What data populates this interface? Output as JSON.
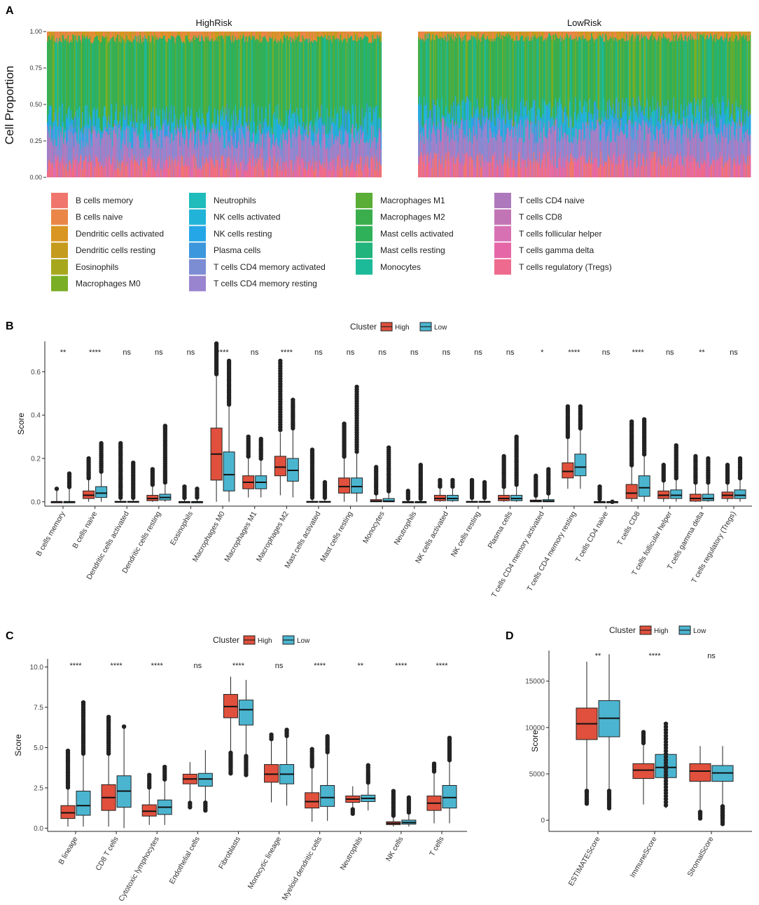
{
  "figure": {
    "panel_labels": [
      "A",
      "B",
      "C",
      "D"
    ],
    "colors": {
      "high": "#e0503c",
      "low": "#4bb5d0"
    },
    "legend_title": "Cluster",
    "legend_labels": [
      "High",
      "Low"
    ]
  },
  "chart_data": [
    {
      "panel": "A",
      "type": "bar",
      "subtype": "stacked-100-percent",
      "ylabel": "Cell Proportion",
      "yticks": [
        "0.00",
        "0.25",
        "0.50",
        "0.75",
        "1.00"
      ],
      "ylim": [
        0,
        1
      ],
      "facets": [
        "HighRisk",
        "LowRisk"
      ],
      "legend": [
        {
          "label": "B cells memory",
          "color": "#f0766d"
        },
        {
          "label": "B cells naive",
          "color": "#e98648"
        },
        {
          "label": "Dendritic cells activated",
          "color": "#d99622"
        },
        {
          "label": "Dendritic cells resting",
          "color": "#c49b1c"
        },
        {
          "label": "Eosinophils",
          "color": "#a6a71d"
        },
        {
          "label": "Macrophages M0",
          "color": "#7aae24"
        },
        {
          "label": "Neutrophils",
          "color": "#1fbcbb"
        },
        {
          "label": "NK cells activated",
          "color": "#22b4d8"
        },
        {
          "label": "NK cells resting",
          "color": "#25a6e6"
        },
        {
          "label": "Plasma cells",
          "color": "#3d97dc"
        },
        {
          "label": "T cells CD4 memory activated",
          "color": "#7d8dd4"
        },
        {
          "label": "T cells CD4 memory resting",
          "color": "#9984cf"
        },
        {
          "label": "Macrophages M1",
          "color": "#5aad36"
        },
        {
          "label": "Macrophages M2",
          "color": "#3aae4c"
        },
        {
          "label": "Mast cells activated",
          "color": "#2fb15a"
        },
        {
          "label": "Mast cells resting",
          "color": "#21b47c"
        },
        {
          "label": "Monocytes",
          "color": "#1dba99"
        },
        {
          "label": "T cells CD4 naive",
          "color": "#ad79bc"
        },
        {
          "label": "T cells CD8",
          "color": "#c275b5"
        },
        {
          "label": "T cells follicular helper",
          "color": "#d870b4"
        },
        {
          "label": "T cells gamma delta",
          "color": "#e667a8"
        },
        {
          "label": "T cells regulatory (Tregs)",
          "color": "#ee6a8e"
        }
      ],
      "approx_mean_boundaries": {
        "HighRisk": {
          "pink_top": 0.1,
          "purple_top": 0.28,
          "blue_top": 0.4,
          "green_top": 0.95
        },
        "LowRisk": {
          "pink_top": 0.12,
          "purple_top": 0.32,
          "blue_top": 0.45,
          "green_top": 0.96
        }
      }
    },
    {
      "panel": "B",
      "type": "box",
      "ylabel": "Score",
      "ylim": [
        -0.02,
        0.74
      ],
      "yticks": [
        "0.0",
        "0.2",
        "0.4",
        "0.6"
      ],
      "legend_title": "Cluster",
      "series": [
        "High",
        "Low"
      ],
      "categories": [
        "B cells memory",
        "B cells naive",
        "Dendritic cells activated",
        "Dendritic cells resting",
        "Eosinophils",
        "Macrophages M0",
        "Macrophages M1",
        "Macrophages M2",
        "Mast cells activated",
        "Mast cells resting",
        "Monocytes",
        "Neutrophils",
        "NK cells activated",
        "NK cells resting",
        "Plasma cells",
        "T cells CD4 memory activated",
        "T cells CD4 memory resting",
        "T cells CD4 naive",
        "T cells CD8",
        "T cells follicular helper",
        "T cells gamma delta",
        "T cells regulatory (Tregs)"
      ],
      "significance": [
        "**",
        "****",
        "ns",
        "ns",
        "ns",
        "****",
        "ns",
        "****",
        "ns",
        "ns",
        "ns",
        "ns",
        "ns",
        "ns",
        "ns",
        "*",
        "****",
        "ns",
        "****",
        "ns",
        "**",
        "ns"
      ],
      "boxes": [
        [
          [
            0,
            0,
            0,
            0,
            0.05,
            [
              0.06
            ]
          ],
          [
            0,
            0,
            0,
            0,
            0.06,
            [
              0.13
            ]
          ]
        ],
        [
          [
            0,
            0.015,
            0.03,
            0.05,
            0.1,
            [
              0.2
            ]
          ],
          [
            0,
            0.02,
            0.04,
            0.07,
            0.13,
            [
              0.27
            ]
          ]
        ],
        [
          [
            0,
            0,
            0,
            0.002,
            0.01,
            [
              0.27
            ]
          ],
          [
            0,
            0,
            0,
            0.002,
            0.01,
            [
              0.18
            ]
          ]
        ],
        [
          [
            0,
            0.005,
            0.015,
            0.03,
            0.07,
            [
              0.15
            ]
          ],
          [
            0,
            0.008,
            0.02,
            0.035,
            0.08,
            [
              0.35
            ]
          ]
        ],
        [
          [
            0,
            0,
            0,
            0,
            0.01,
            [
              0.07
            ]
          ],
          [
            0,
            0,
            0,
            0,
            0.01,
            [
              0.06
            ]
          ]
        ],
        [
          [
            0,
            0.1,
            0.22,
            0.34,
            0.58,
            [
              0.73
            ]
          ],
          [
            0,
            0.05,
            0.125,
            0.23,
            0.44,
            [
              0.65
            ]
          ]
        ],
        [
          [
            0.02,
            0.06,
            0.09,
            0.12,
            0.2,
            [
              0.3
            ]
          ],
          [
            0.02,
            0.06,
            0.09,
            0.12,
            0.19,
            [
              0.29
            ]
          ]
        ],
        [
          [
            0.03,
            0.12,
            0.16,
            0.21,
            0.32,
            [
              0.65
            ]
          ],
          [
            0.02,
            0.095,
            0.145,
            0.2,
            0.33,
            [
              0.47
            ]
          ]
        ],
        [
          [
            0,
            0,
            0,
            0.002,
            0.01,
            [
              0.24
            ]
          ],
          [
            0,
            0,
            0,
            0.002,
            0.01,
            [
              0.09
            ]
          ]
        ],
        [
          [
            0,
            0.04,
            0.07,
            0.11,
            0.2,
            [
              0.36
            ]
          ],
          [
            0,
            0.04,
            0.07,
            0.11,
            0.22,
            [
              0.53
            ]
          ]
        ],
        [
          [
            0,
            0,
            0.003,
            0.01,
            0.03,
            [
              0.16
            ]
          ],
          [
            0,
            0,
            0.003,
            0.015,
            0.04,
            [
              0.25
            ]
          ]
        ],
        [
          [
            0,
            0,
            0,
            0,
            0.005,
            [
              0.05
            ]
          ],
          [
            0,
            0,
            0,
            0,
            0.005,
            [
              0.17
            ]
          ]
        ],
        [
          [
            0,
            0.005,
            0.015,
            0.03,
            0.06,
            [
              0.1
            ]
          ],
          [
            0,
            0.005,
            0.015,
            0.03,
            0.06,
            [
              0.1
            ]
          ]
        ],
        [
          [
            0,
            0,
            0,
            0.002,
            0.01,
            [
              0.1
            ]
          ],
          [
            0,
            0,
            0,
            0.002,
            0.01,
            [
              0.09
            ]
          ]
        ],
        [
          [
            0,
            0.005,
            0.015,
            0.03,
            0.06,
            [
              0.21
            ]
          ],
          [
            0,
            0.005,
            0.015,
            0.03,
            0.07,
            [
              0.3
            ]
          ]
        ],
        [
          [
            0,
            0,
            0.003,
            0.008,
            0.02,
            [
              0.12
            ]
          ],
          [
            0,
            0,
            0.003,
            0.01,
            0.03,
            [
              0.15
            ]
          ]
        ],
        [
          [
            0.06,
            0.11,
            0.14,
            0.18,
            0.29,
            [
              0.44
            ]
          ],
          [
            0.06,
            0.12,
            0.16,
            0.22,
            0.33,
            [
              0.44
            ]
          ]
        ],
        [
          [
            0,
            0,
            0,
            0,
            0.003,
            [
              0.07
            ]
          ],
          [
            0,
            0,
            0,
            0,
            0.003,
            [
              0.0
            ]
          ]
        ],
        [
          [
            0,
            0.015,
            0.04,
            0.08,
            0.16,
            [
              0.37
            ]
          ],
          [
            0,
            0.025,
            0.065,
            0.12,
            0.21,
            [
              0.38
            ]
          ]
        ],
        [
          [
            0,
            0.015,
            0.03,
            0.05,
            0.09,
            [
              0.17
            ]
          ],
          [
            0,
            0.015,
            0.03,
            0.055,
            0.1,
            [
              0.26
            ]
          ]
        ],
        [
          [
            0,
            0.003,
            0.015,
            0.035,
            0.08,
            [
              0.21
            ]
          ],
          [
            0,
            0.005,
            0.015,
            0.035,
            0.08,
            [
              0.2
            ]
          ]
        ],
        [
          [
            0,
            0.015,
            0.03,
            0.045,
            0.08,
            [
              0.17
            ]
          ],
          [
            0,
            0.015,
            0.03,
            0.055,
            0.1,
            [
              0.2
            ]
          ]
        ]
      ]
    },
    {
      "panel": "C",
      "type": "box",
      "ylabel": "Score",
      "ylim": [
        -0.2,
        10.5
      ],
      "yticks": [
        "0.0",
        "2.5",
        "5.0",
        "7.5",
        "10.0"
      ],
      "legend_title": "Cluster",
      "series": [
        "High",
        "Low"
      ],
      "categories": [
        "B lineage",
        "CD8 T cells",
        "Cytotoxic lymphocytes",
        "Endothelial cells",
        "Fibroblasts",
        "Monocytic lineage",
        "Myeloid dendritic cells",
        "Neutrophils",
        "NK cells",
        "T cells"
      ],
      "significance": [
        "****",
        "****",
        "****",
        "ns",
        "****",
        "ns",
        "****",
        "**",
        "****",
        "****"
      ],
      "boxes": [
        [
          [
            0.1,
            0.6,
            0.95,
            1.4,
            2.4,
            [
              4.8
            ]
          ],
          [
            0.1,
            0.8,
            1.4,
            2.3,
            4.5,
            [
              7.8
            ]
          ]
        ],
        [
          [
            0.1,
            1.1,
            1.9,
            2.7,
            4.5,
            [
              6.9
            ]
          ],
          [
            0,
            1.3,
            2.3,
            3.25,
            6.2,
            [
              6.3
            ]
          ]
        ],
        [
          [
            0.2,
            0.75,
            1.05,
            1.45,
            2.4,
            [
              3.3
            ]
          ],
          [
            0.2,
            0.85,
            1.3,
            1.75,
            2.9,
            [
              3.8
            ]
          ]
        ],
        [
          [
            1.7,
            2.75,
            3.05,
            3.35,
            4.1,
            [
              1.3
            ]
          ],
          [
            1.7,
            2.6,
            3.05,
            3.4,
            4.85,
            [
              1.1
            ]
          ]
        ],
        [
          [
            4.8,
            6.85,
            7.55,
            8.3,
            9.4,
            [
              3.4
            ]
          ],
          [
            4.6,
            6.4,
            7.35,
            7.95,
            9.2,
            [
              3.3
            ]
          ]
        ],
        [
          [
            1.6,
            2.85,
            3.35,
            3.95,
            5.4,
            [
              5.8
            ]
          ],
          [
            1.4,
            2.75,
            3.35,
            3.95,
            5.6,
            [
              6.1
            ]
          ]
        ],
        [
          [
            0.4,
            1.25,
            1.65,
            2.2,
            3.7,
            [
              4.9
            ]
          ],
          [
            0.45,
            1.35,
            1.9,
            2.65,
            4.6,
            [
              5.7
            ]
          ]
        ],
        [
          [
            1.3,
            1.6,
            1.8,
            2.0,
            2.6,
            [
              0.9
            ]
          ],
          [
            1.1,
            1.65,
            1.85,
            2.05,
            2.7,
            [
              3.9
            ]
          ]
        ],
        [
          [
            0.1,
            0.22,
            0.3,
            0.4,
            0.65,
            [
              2.3
            ]
          ],
          [
            0.1,
            0.25,
            0.35,
            0.5,
            0.85,
            [
              1.9
            ]
          ]
        ],
        [
          [
            0.3,
            1.1,
            1.55,
            2.0,
            3.4,
            [
              4.0
            ]
          ],
          [
            0.3,
            1.25,
            1.9,
            2.65,
            4.1,
            [
              5.6
            ]
          ]
        ]
      ]
    },
    {
      "panel": "D",
      "type": "box",
      "ylabel": "Score",
      "ylim": [
        -1200,
        18300
      ],
      "yticks": [
        "0",
        "5000",
        "10000",
        "15000"
      ],
      "legend_title": "Cluster",
      "series": [
        "High",
        "Low"
      ],
      "categories": [
        "ESTIMATEScore",
        "ImmuneScore",
        "StromalScore"
      ],
      "significance": [
        "**",
        "****",
        "ns"
      ],
      "boxes": [
        [
          [
            3400,
            8700,
            10400,
            12100,
            17100,
            [
              1800,
              3100
            ]
          ],
          [
            3400,
            9000,
            11000,
            12900,
            17900,
            [
              1300
            ]
          ]
        ],
        [
          [
            1700,
            4500,
            5400,
            6100,
            8100,
            [
              9500
            ]
          ],
          [
            1300,
            4600,
            5700,
            7100,
            10600,
            [
              10400
            ]
          ]
        ],
        [
          [
            1100,
            4200,
            5300,
            6100,
            8000,
            [
              200,
              700
            ]
          ],
          [
            1700,
            4200,
            5100,
            5900,
            8000,
            [
              -400,
              300,
              1000,
              1500
            ]
          ]
        ]
      ]
    }
  ]
}
